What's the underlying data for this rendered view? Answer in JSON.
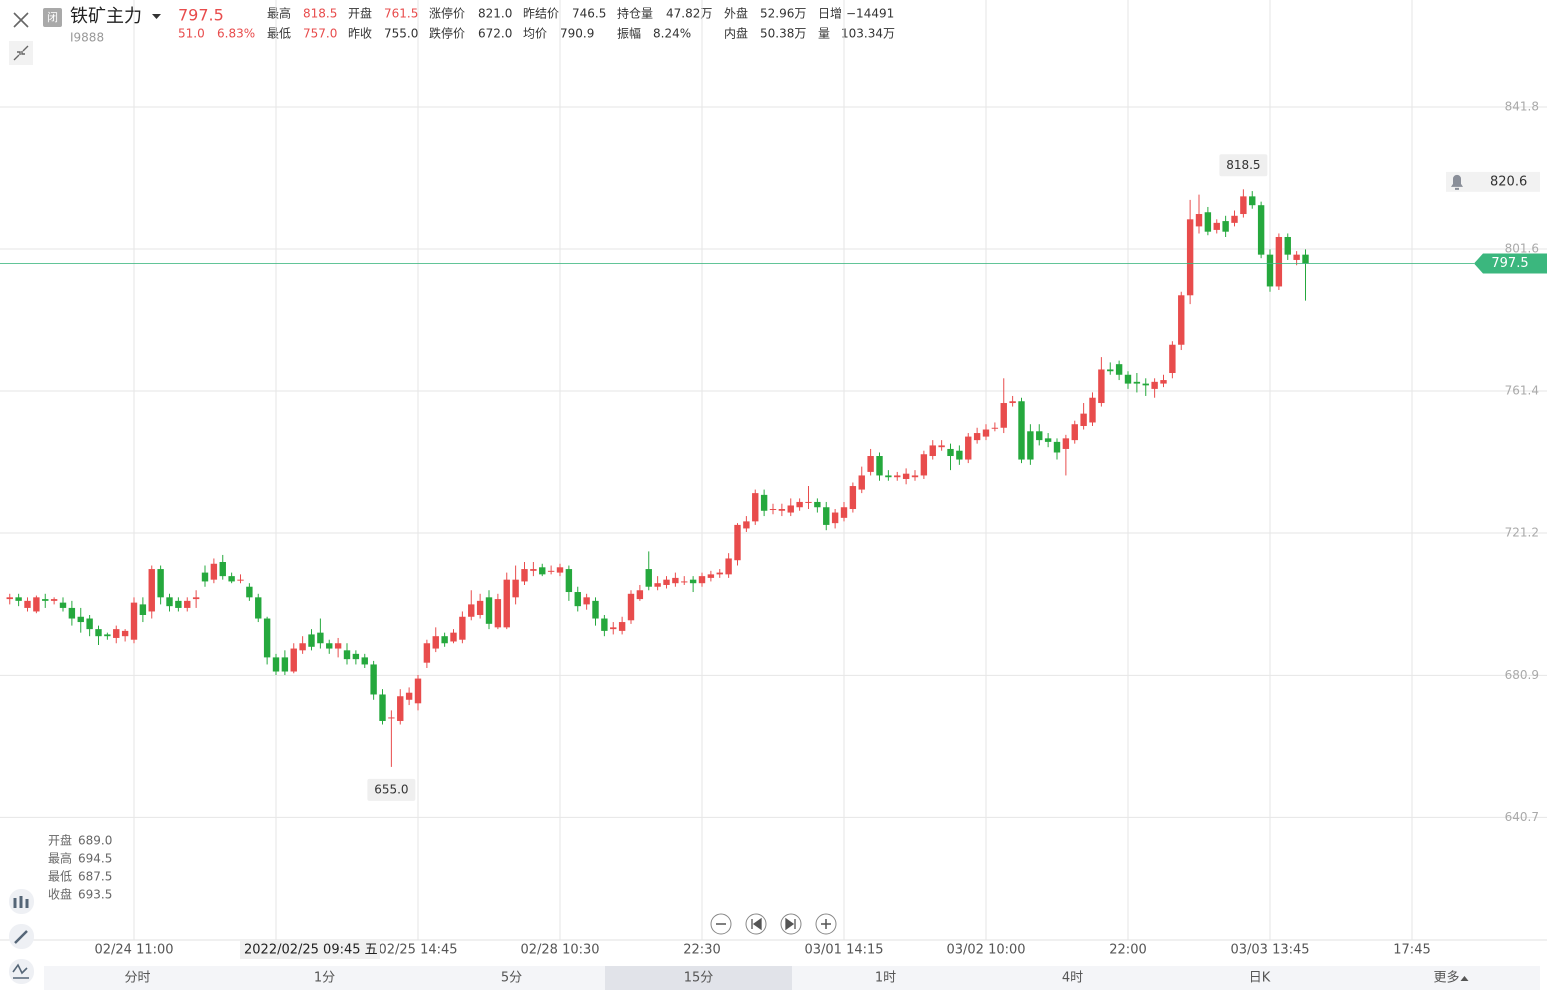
{
  "header": {
    "closed_badge": "闭",
    "name": "铁矿主力",
    "code": "I9888",
    "price": "797.5",
    "change": "51.0",
    "change_pct": "6.83%",
    "stats": [
      {
        "label": "最高",
        "value": "818.5"
      },
      {
        "label": "开盘",
        "value": "761.5"
      },
      {
        "label": "涨停价",
        "value": "821.0"
      },
      {
        "label": "昨结价",
        "value": "746.5"
      },
      {
        "label": "持仓量",
        "value": "47.82万"
      },
      {
        "label": "外盘",
        "value": "52.96万"
      },
      {
        "label": "日增",
        "value": "−14491"
      },
      {
        "label": "最低",
        "value": "757.0"
      },
      {
        "label": "昨收",
        "value": "755.0"
      },
      {
        "label": "跌停价",
        "value": "672.0"
      },
      {
        "label": "均价",
        "value": "790.9"
      },
      {
        "label": "振幅",
        "value": "8.24%"
      },
      {
        "label": "内盘",
        "value": "50.38万"
      },
      {
        "label": "量",
        "value": "103.34万"
      }
    ]
  },
  "chart_data": {
    "type": "candlestick",
    "up_color": "#e84c4c",
    "down_color": "#25a83d",
    "grid": true,
    "categories": [
      null,
      null,
      null,
      null,
      null,
      null,
      null,
      null,
      null,
      null,
      null,
      null,
      null,
      null,
      "02/24 11:00",
      null,
      null,
      null,
      null,
      null,
      null,
      null,
      null,
      null,
      null,
      null,
      null,
      null,
      null,
      null,
      null,
      null,
      null,
      null,
      null,
      null,
      null,
      null,
      null,
      null,
      null,
      null,
      null,
      null,
      null,
      null,
      "02/25 14:45",
      null,
      null,
      null,
      null,
      null,
      null,
      null,
      null,
      null,
      null,
      null,
      null,
      null,
      null,
      null,
      "02/28 10:30",
      null,
      null,
      null,
      null,
      null,
      null,
      null,
      null,
      null,
      null,
      null,
      null,
      null,
      null,
      null,
      "22:30",
      null,
      null,
      null,
      null,
      null,
      null,
      null,
      null,
      null,
      null,
      null,
      null,
      null,
      null,
      null,
      "03/01 14:15",
      null,
      null,
      null,
      null,
      null,
      null,
      null,
      null,
      null,
      null,
      null,
      null,
      null,
      null,
      null,
      "03/02 10:00",
      null,
      null,
      null,
      null,
      null,
      null,
      null,
      null,
      null,
      null,
      null,
      null,
      null,
      null,
      null,
      "22:00",
      null,
      null,
      null,
      null,
      null,
      null,
      null,
      null,
      null,
      null,
      null,
      null,
      null,
      null,
      null,
      "03/03 13:45",
      null,
      null,
      null,
      null,
      null,
      null,
      null,
      null,
      null,
      null,
      null,
      null,
      null,
      null,
      null,
      "17:45"
    ],
    "open": [
      702.5,
      703,
      700,
      699,
      702.5,
      702,
      701.5,
      700,
      697.5,
      697,
      694,
      692.5,
      691.5,
      692,
      691,
      701,
      699,
      711,
      703,
      702,
      700,
      702.5,
      710,
      708,
      713,
      709,
      708,
      706,
      703,
      697,
      686,
      686,
      682,
      688,
      692.5,
      693,
      690,
      688.5,
      688,
      687,
      686,
      684,
      675.5,
      669,
      668,
      674,
      673,
      684.5,
      688.5,
      692,
      690.5,
      691,
      697.5,
      698,
      703,
      694.5,
      694.5,
      703,
      707.5,
      710.5,
      711.5,
      710.5,
      710,
      711,
      704.5,
      701,
      702,
      697,
      694,
      693.5,
      696.5,
      702.5,
      711,
      706,
      706.5,
      707,
      707.5,
      708,
      707,
      708.5,
      709.5,
      709.5,
      713.5,
      722.5,
      724.5,
      732,
      728,
      727.5,
      727,
      728.5,
      730,
      730,
      728.5,
      724,
      725.5,
      728,
      733.5,
      738.5,
      743,
      737.5,
      737,
      736.5,
      737,
      737.5,
      743,
      745.5,
      745,
      744.5,
      742,
      747.5,
      748.5,
      751,
      751,
      758,
      758.5,
      750,
      750,
      748,
      747,
      745,
      747.5,
      751.5,
      752.5,
      758,
      767.5,
      769,
      766,
      764,
      763.5,
      762,
      763.5,
      766.5,
      774.5,
      788.5,
      808,
      812,
      807,
      809.5,
      809,
      811.5,
      816.5,
      814,
      800,
      791,
      805,
      798.5,
      800,
      null,
      null,
      null,
      null,
      null,
      null,
      null,
      null,
      null,
      null,
      null,
      null
    ],
    "high": [
      704,
      704,
      703,
      703.5,
      704,
      703,
      703,
      702,
      700,
      698,
      695,
      693,
      695,
      694,
      703,
      703,
      712,
      712,
      704,
      703,
      703,
      705,
      712,
      714,
      715,
      710,
      709.5,
      707,
      704,
      697.5,
      687,
      688,
      690,
      692,
      694,
      697,
      691,
      691.5,
      690,
      688,
      687,
      685,
      677,
      671,
      677,
      677.5,
      681,
      691,
      694.5,
      693,
      694,
      699,
      705,
      704,
      705,
      704,
      710,
      712,
      713,
      713,
      712.5,
      712,
      712.5,
      712,
      706,
      704,
      703,
      698,
      696,
      697.5,
      705,
      706.5,
      716,
      709,
      709,
      710,
      709,
      709,
      710,
      710.5,
      711,
      715.5,
      724,
      726,
      733.5,
      733.5,
      729.5,
      729.5,
      731,
      731,
      734.5,
      731,
      730,
      728,
      730,
      735.5,
      740,
      745,
      744,
      739,
      738.5,
      739.5,
      739,
      744.5,
      747.5,
      747.5,
      746.5,
      746,
      749.5,
      751,
      752,
      752.5,
      765,
      760,
      759.5,
      752,
      752,
      749.5,
      748,
      749,
      753,
      758,
      761,
      771,
      769.5,
      770,
      767,
      766.5,
      765,
      765,
      766,
      775.5,
      789.5,
      815.5,
      817,
      813.5,
      810,
      811,
      812.5,
      818.5,
      818,
      815,
      801.5,
      806,
      806,
      801,
      801.5,
      null,
      null,
      null,
      null,
      null,
      null,
      null,
      null,
      null,
      null,
      null,
      null
    ],
    "low": [
      701,
      700.5,
      699,
      698.5,
      700,
      701,
      699,
      695,
      693,
      692,
      689.5,
      691,
      690,
      690.5,
      690,
      696,
      697,
      701,
      699,
      699,
      699,
      700,
      706,
      707,
      708,
      707,
      707,
      702,
      696,
      684,
      681,
      681,
      681.5,
      687,
      688,
      688.5,
      687,
      686,
      684,
      684,
      683,
      674,
      667,
      655,
      667,
      672.5,
      671,
      683,
      687.5,
      689,
      690,
      690,
      696.5,
      697,
      694,
      694,
      694,
      701,
      706.5,
      709,
      709,
      709.5,
      709,
      702,
      699,
      699.5,
      695,
      692,
      692.5,
      692.5,
      695.5,
      702,
      705,
      705,
      705.5,
      706,
      706.5,
      704.5,
      706,
      707.5,
      708.5,
      708.5,
      712,
      721.5,
      723.5,
      726,
      726.5,
      726,
      726,
      727.5,
      728,
      727,
      722,
      722.5,
      724.5,
      727,
      732.5,
      737.5,
      736,
      736,
      736,
      735,
      736,
      736.5,
      742,
      744.5,
      739,
      740.5,
      741,
      746.5,
      747.5,
      750,
      749.5,
      757,
      741,
      740.5,
      746,
      745.5,
      742,
      737.5,
      746.5,
      750.5,
      751.5,
      757,
      766,
      764.5,
      762,
      761,
      760,
      759.5,
      762.5,
      765,
      773,
      786,
      806,
      805.5,
      806,
      805,
      808,
      810.5,
      813,
      799,
      789.5,
      790,
      798.5,
      797,
      787,
      null,
      null,
      null,
      null,
      null,
      null,
      null,
      null,
      null,
      null,
      null,
      null
    ],
    "close": [
      703,
      702,
      702,
      703,
      702,
      702.5,
      700,
      697,
      696,
      694,
      692,
      692,
      694,
      693.5,
      701.5,
      698,
      711,
      703,
      700.5,
      700,
      702,
      703,
      707.5,
      712.5,
      709,
      707.5,
      708,
      703,
      697,
      686,
      682,
      682,
      688.5,
      690,
      689,
      690,
      688.5,
      690,
      685.5,
      685.5,
      684,
      675.5,
      668,
      669,
      675,
      676,
      680,
      690,
      692,
      690,
      693,
      697.5,
      701,
      702,
      695.5,
      702.5,
      708,
      708,
      711,
      711,
      709.5,
      710.5,
      711.5,
      704.5,
      700.5,
      703,
      697,
      693.5,
      694.5,
      696,
      704,
      705,
      706,
      707,
      708,
      708.5,
      707.5,
      707,
      709,
      709.5,
      710,
      714,
      723.5,
      724.5,
      732.5,
      727.5,
      728,
      728,
      729,
      730,
      730,
      728.5,
      723.5,
      727,
      728.5,
      734.5,
      737.5,
      743,
      737.5,
      737,
      737.5,
      738,
      737.5,
      743.5,
      746,
      746,
      743,
      742,
      748.5,
      749.5,
      750.5,
      751,
      758,
      758.5,
      742,
      742,
      747.5,
      747,
      744,
      748,
      752,
      755,
      759.5,
      767.5,
      767,
      766,
      763.5,
      763.5,
      763,
      764,
      764.5,
      774.5,
      788.5,
      810,
      811.5,
      806.5,
      809,
      806.5,
      811,
      816.5,
      814,
      800,
      791,
      805,
      800,
      800,
      797.5,
      null,
      null,
      null,
      null,
      null,
      null,
      null,
      null,
      null,
      null,
      null,
      null
    ],
    "ylim": [
      606.0,
      855.1
    ],
    "yticks": [
      640.7,
      680.9,
      721.2,
      761.4,
      801.6,
      841.8
    ],
    "max_label": "818.5",
    "min_label": "655.0",
    "last_price": 797.5,
    "last_price_color": "#3bb77e",
    "alert_price": 820.6,
    "crosshair": {
      "time_label": "2022/02/25 09:45 五",
      "rows": [
        {
          "label": "开盘",
          "value": "689.0"
        },
        {
          "label": "最高",
          "value": "694.5"
        },
        {
          "label": "最低",
          "value": "687.5"
        },
        {
          "label": "收盘",
          "value": "693.5"
        }
      ]
    }
  },
  "tabs": [
    "分时",
    "1分",
    "5分",
    "15分",
    "1时",
    "4时",
    "日K",
    "更多"
  ],
  "selected_tab": 3
}
